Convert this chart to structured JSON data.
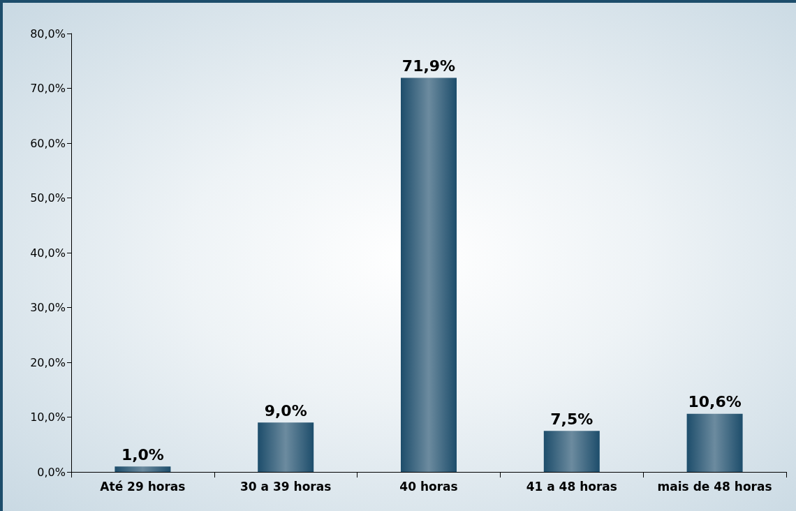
{
  "chart_data": {
    "type": "bar",
    "categories": [
      "Até 29 horas",
      "30 a 39 horas",
      "40 horas",
      "41 a 48 horas",
      "mais de 48 horas"
    ],
    "values": [
      1.0,
      9.0,
      71.9,
      7.5,
      10.6
    ],
    "value_labels": [
      "1,0%",
      "9,0%",
      "71,9%",
      "7,5%",
      "10,6%"
    ],
    "color": "#1d4d6b",
    "ylim": [
      0,
      80
    ],
    "yticks": [
      {
        "value": 0,
        "label": "0,0%"
      },
      {
        "value": 10,
        "label": "10,0%"
      },
      {
        "value": 20,
        "label": "20,0%"
      },
      {
        "value": 30,
        "label": "30,0%"
      },
      {
        "value": 40,
        "label": "40,0%"
      },
      {
        "value": 50,
        "label": "50,0%"
      },
      {
        "value": 60,
        "label": "60,0%"
      },
      {
        "value": 70,
        "label": "70,0%"
      },
      {
        "value": 80,
        "label": "80,0%"
      }
    ],
    "grid": false
  }
}
